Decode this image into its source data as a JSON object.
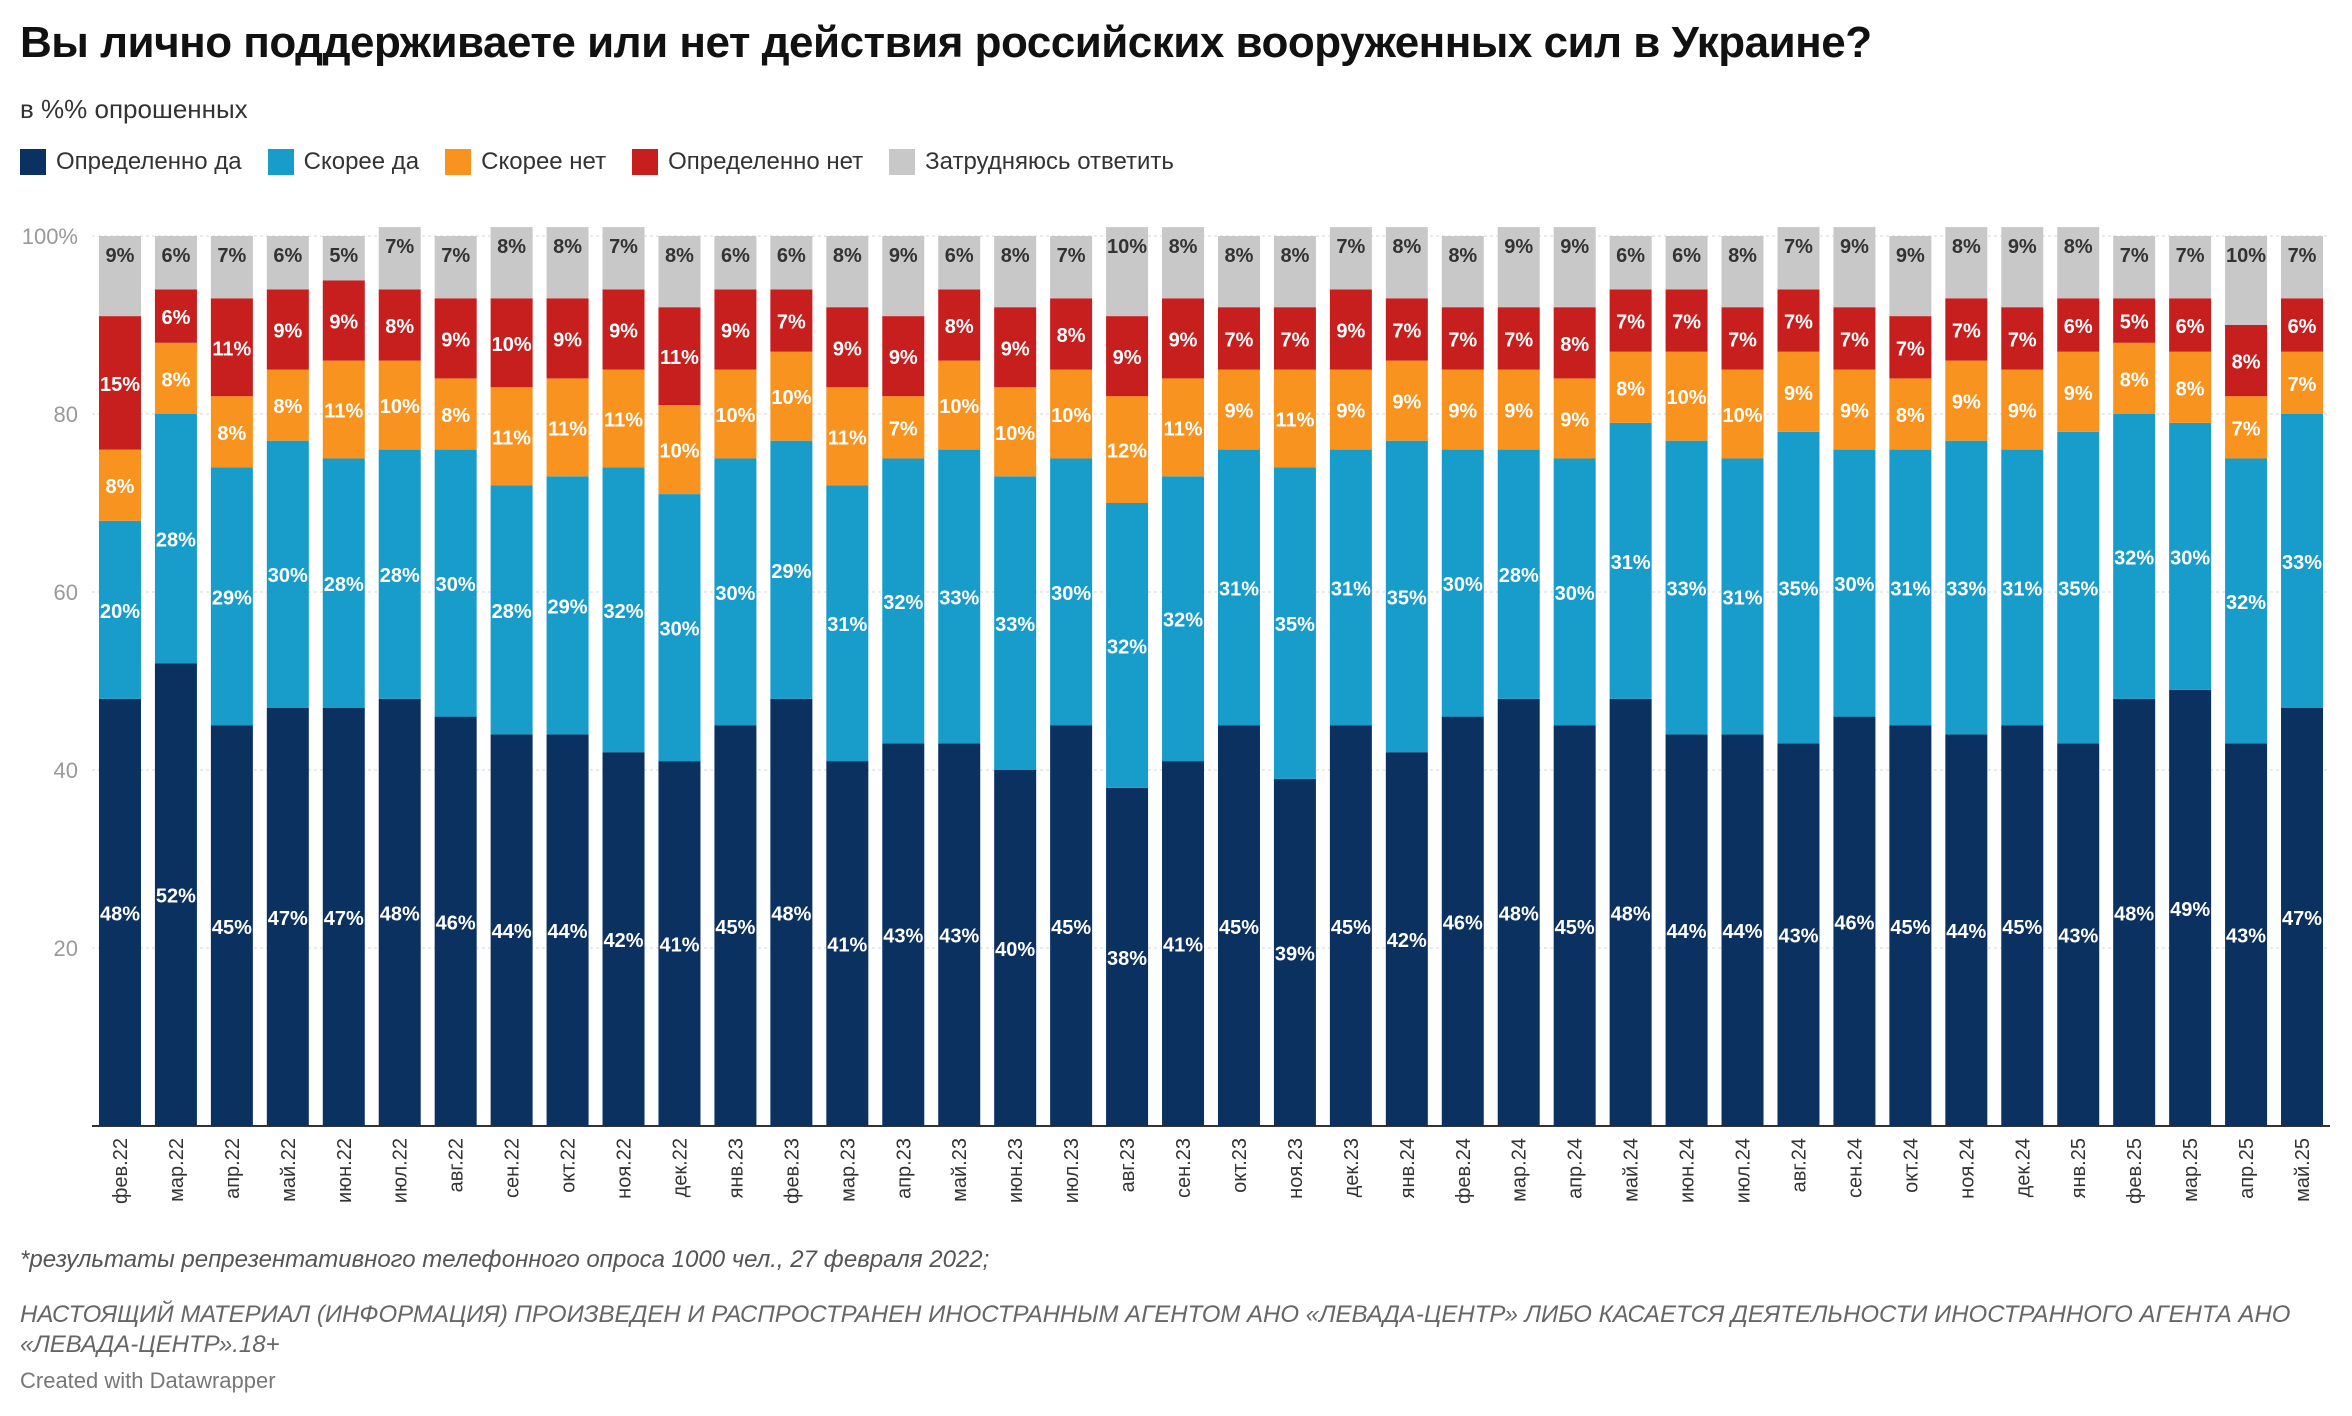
{
  "title": "Вы лично поддерживаете или нет действия российских вооруженных сил в Украине?",
  "subtitle": "в %% опрошенных",
  "note": "*результаты репрезентативного телефонного опроса 1000 чел., 27 февраля 2022;",
  "disclaimer": "НАСТОЯЩИЙ МАТЕРИАЛ (ИНФОРМАЦИЯ) ПРОИЗВЕДЕН И РАСПРОСТРАНЕН ИНОСТРАННЫМ АГЕНТОМ АНО «ЛЕВАДА-ЦЕНТР» ЛИБО КАСАЕТСЯ ДЕЯТЕЛЬНОСТИ ИНОСТРАННОГО АГЕНТА АНО «ЛЕВАДА-ЦЕНТР».18+",
  "credit": "Created with Datawrapper",
  "colors": {
    "Определенно да": "#0b3160",
    "Скорее да": "#189dcb",
    "Скорее нет": "#f7931e",
    "Определенно нет": "#c71e1e",
    "Затрудняюсь ответить": "#c8c8c8",
    "gridline": "#e3e3e3",
    "axis_text": "#999999",
    "category_text": "#333333",
    "label_light": "#ffffff",
    "label_dark": "#333333"
  },
  "chart_data": {
    "type": "bar",
    "stacked": true,
    "title": "Вы лично поддерживаете или нет действия российских вооруженных сил в Украине?",
    "subtitle": "в %% опрошенных",
    "ylim": [
      0,
      100
    ],
    "yticks": [
      20,
      40,
      60,
      80,
      100
    ],
    "ytick_labels": [
      "20",
      "40",
      "60",
      "80",
      "100%"
    ],
    "grid": true,
    "legend_position": "top-left",
    "categories": [
      "фев.22",
      "мар.22",
      "апр.22",
      "май.22",
      "июн.22",
      "июл.22",
      "авг.22",
      "сен.22",
      "окт.22",
      "ноя.22",
      "дек.22",
      "янв.23",
      "фев.23",
      "мар.23",
      "апр.23",
      "май.23",
      "июн.23",
      "июл.23",
      "авг.23",
      "сен.23",
      "окт.23",
      "ноя.23",
      "дек.23",
      "янв.24",
      "фев.24",
      "мар.24",
      "апр.24",
      "май.24",
      "июн.24",
      "июл.24",
      "авг.24",
      "сен.24",
      "окт.24",
      "ноя.24",
      "дек.24",
      "янв.25",
      "фев.25",
      "мар.25",
      "апр.25",
      "май.25"
    ],
    "series": [
      {
        "name": "Определенно да",
        "values": [
          48,
          52,
          45,
          47,
          47,
          48,
          46,
          44,
          44,
          42,
          41,
          45,
          48,
          41,
          43,
          43,
          40,
          45,
          38,
          41,
          45,
          39,
          45,
          42,
          46,
          48,
          45,
          48,
          44,
          44,
          43,
          46,
          45,
          44,
          45,
          43,
          48,
          49,
          43,
          47
        ]
      },
      {
        "name": "Скорее да",
        "values": [
          20,
          28,
          29,
          30,
          28,
          28,
          30,
          28,
          29,
          32,
          30,
          30,
          29,
          31,
          32,
          33,
          33,
          30,
          32,
          32,
          31,
          35,
          31,
          35,
          30,
          28,
          30,
          31,
          33,
          31,
          35,
          30,
          31,
          33,
          31,
          35,
          32,
          30,
          32,
          33
        ]
      },
      {
        "name": "Скорее нет",
        "values": [
          8,
          8,
          8,
          8,
          11,
          10,
          8,
          11,
          11,
          11,
          10,
          10,
          10,
          11,
          7,
          10,
          10,
          10,
          12,
          11,
          9,
          11,
          9,
          9,
          9,
          9,
          9,
          8,
          10,
          10,
          9,
          9,
          8,
          9,
          9,
          9,
          8,
          8,
          7,
          7
        ]
      },
      {
        "name": "Определенно нет",
        "values": [
          15,
          6,
          11,
          9,
          9,
          8,
          9,
          10,
          9,
          9,
          11,
          9,
          7,
          9,
          9,
          8,
          9,
          8,
          9,
          9,
          7,
          7,
          9,
          7,
          7,
          7,
          8,
          7,
          7,
          7,
          7,
          7,
          7,
          7,
          7,
          6,
          5,
          6,
          8,
          6
        ]
      },
      {
        "name": "Затрудняюсь ответить",
        "values": [
          9,
          6,
          7,
          6,
          5,
          7,
          7,
          8,
          8,
          7,
          8,
          6,
          6,
          8,
          9,
          6,
          8,
          7,
          10,
          8,
          8,
          8,
          7,
          8,
          8,
          9,
          9,
          6,
          6,
          8,
          7,
          9,
          9,
          8,
          9,
          8,
          7,
          7,
          10,
          7
        ]
      }
    ]
  }
}
